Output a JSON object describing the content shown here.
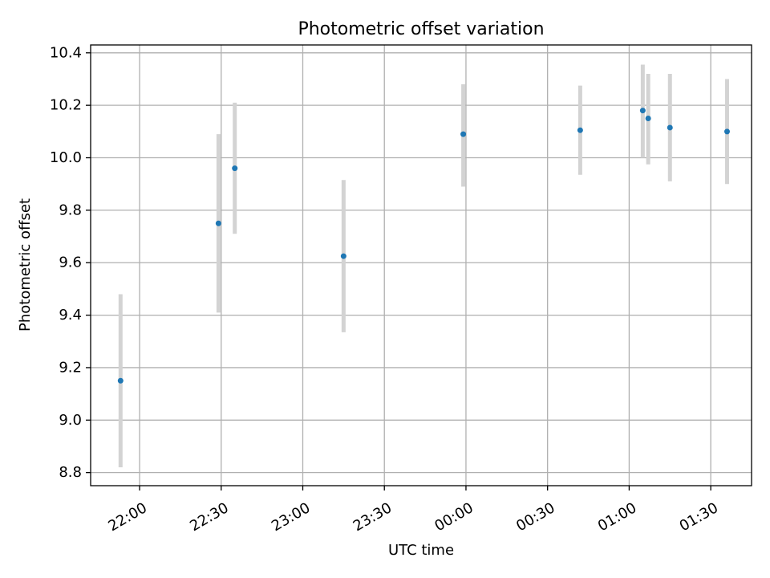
{
  "chart_data": {
    "type": "scatter",
    "title": "Photometric offset variation",
    "xlabel": "UTC time",
    "ylabel": "Photometric offset",
    "grid": true,
    "xlim": [
      "21:42",
      "01:45"
    ],
    "ylim": [
      8.75,
      10.43
    ],
    "x_ticks": [
      "22:00",
      "22:30",
      "23:00",
      "23:30",
      "00:00",
      "00:30",
      "01:00",
      "01:30"
    ],
    "y_ticks": [
      "8.8",
      "9.0",
      "9.2",
      "9.4",
      "9.6",
      "9.8",
      "10.0",
      "10.2",
      "10.4"
    ],
    "points": [
      {
        "x": "21:53",
        "y": 9.15,
        "err_low": 8.82,
        "err_high": 9.48
      },
      {
        "x": "22:29",
        "y": 9.75,
        "err_low": 9.41,
        "err_high": 10.09
      },
      {
        "x": "22:35",
        "y": 9.96,
        "err_low": 9.71,
        "err_high": 10.21
      },
      {
        "x": "23:15",
        "y": 9.625,
        "err_low": 9.335,
        "err_high": 9.915
      },
      {
        "x": "23:59",
        "y": 10.09,
        "err_low": 9.89,
        "err_high": 10.28
      },
      {
        "x": "00:42",
        "y": 10.105,
        "err_low": 9.935,
        "err_high": 10.275
      },
      {
        "x": "01:05",
        "y": 10.18,
        "err_low": 10.0,
        "err_high": 10.355
      },
      {
        "x": "01:07",
        "y": 10.15,
        "err_low": 9.975,
        "err_high": 10.32
      },
      {
        "x": "01:15",
        "y": 10.115,
        "err_low": 9.91,
        "err_high": 10.32
      },
      {
        "x": "01:36",
        "y": 10.1,
        "err_low": 9.9,
        "err_high": 10.3
      }
    ],
    "colors": {
      "marker": "#1f77b4",
      "errorbar": "#d3d3d3",
      "grid": "#b0b0b0",
      "axes": "#000000"
    }
  }
}
